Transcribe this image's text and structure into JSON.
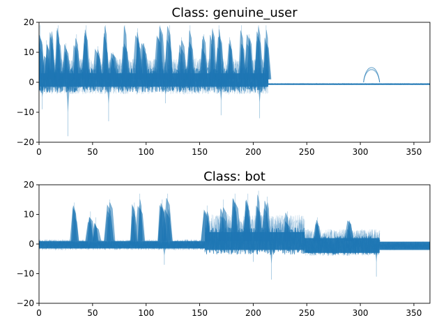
{
  "chart_data": [
    {
      "type": "line",
      "title": "Class: genuine_user",
      "xlabel": "",
      "ylabel": "",
      "xlim": [
        0,
        365
      ],
      "ylim": [
        -20,
        20
      ],
      "xticks": [
        0,
        50,
        100,
        150,
        200,
        250,
        300,
        350
      ],
      "yticks": [
        -20,
        -10,
        0,
        10,
        20
      ],
      "grid": false,
      "series_color": "#1f77b4",
      "series_description_note": "",
      "segments": [
        {
          "x": [
            0,
            214
          ],
          "lo": -4,
          "hi": 8,
          "band_lo": -1.5,
          "band_hi": 3
        },
        {
          "x": [
            214,
            365
          ],
          "lo": -0.8,
          "hi": -0.4,
          "band_lo": -0.8,
          "band_hi": -0.4
        }
      ],
      "peaks": [
        {
          "x": 1,
          "hi": 19
        },
        {
          "x": 7,
          "hi": 14
        },
        {
          "x": 12,
          "hi": 17
        },
        {
          "x": 18,
          "hi": 19
        },
        {
          "x": 25,
          "hi": 13
        },
        {
          "x": 35,
          "hi": 16
        },
        {
          "x": 44,
          "hi": 19
        },
        {
          "x": 55,
          "hi": 12
        },
        {
          "x": 62,
          "hi": 19
        },
        {
          "x": 69,
          "hi": 10
        },
        {
          "x": 80,
          "hi": 19
        },
        {
          "x": 92,
          "hi": 18
        },
        {
          "x": 98,
          "hi": 13
        },
        {
          "x": 113,
          "hi": 19
        },
        {
          "x": 122,
          "hi": 19
        },
        {
          "x": 133,
          "hi": 15
        },
        {
          "x": 141,
          "hi": 19
        },
        {
          "x": 154,
          "hi": 16
        },
        {
          "x": 162,
          "hi": 18
        },
        {
          "x": 168,
          "hi": 19
        },
        {
          "x": 178,
          "hi": 15
        },
        {
          "x": 189,
          "hi": 19
        },
        {
          "x": 196,
          "hi": 16
        },
        {
          "x": 205,
          "hi": 19
        },
        {
          "x": 212,
          "hi": 19
        }
      ],
      "dips": [
        {
          "x": 3,
          "lo": -9
        },
        {
          "x": 27,
          "lo": -18
        },
        {
          "x": 65,
          "lo": -13
        },
        {
          "x": 118,
          "lo": -7
        },
        {
          "x": 170,
          "lo": -11
        },
        {
          "x": 206,
          "lo": -12
        }
      ],
      "bumps": [
        {
          "x": [
            303,
            318
          ],
          "lo": 2,
          "hi": 7
        }
      ]
    },
    {
      "type": "line",
      "title": "Class: bot",
      "xlabel": "",
      "ylabel": "",
      "xlim": [
        0,
        365
      ],
      "ylim": [
        -20,
        20
      ],
      "xticks": [
        0,
        50,
        100,
        150,
        200,
        250,
        300,
        350
      ],
      "yticks": [
        -20,
        -10,
        0,
        10,
        20
      ],
      "grid": false,
      "series_color": "#1f77b4",
      "series_description_note": "",
      "segments": [
        {
          "x": [
            0,
            155
          ],
          "lo": -2,
          "hi": 1.5,
          "band_lo": -1.5,
          "band_hi": 1
        },
        {
          "x": [
            155,
            248
          ],
          "lo": -3,
          "hi": 10,
          "band_lo": -2,
          "band_hi": 4
        },
        {
          "x": [
            248,
            318
          ],
          "lo": -4,
          "hi": 5,
          "band_lo": -3,
          "band_hi": 2
        },
        {
          "x": [
            318,
            365
          ],
          "lo": -2,
          "hi": 0.8,
          "band_lo": -2,
          "band_hi": 0.8
        }
      ],
      "peaks": [
        {
          "x": 33,
          "hi": 14
        },
        {
          "x": 48,
          "hi": 11
        },
        {
          "x": 53,
          "hi": 9
        },
        {
          "x": 66,
          "hi": 15
        },
        {
          "x": 89,
          "hi": 14
        },
        {
          "x": 94,
          "hi": 17
        },
        {
          "x": 115,
          "hi": 15
        },
        {
          "x": 120,
          "hi": 17
        },
        {
          "x": 157,
          "hi": 13
        },
        {
          "x": 172,
          "hi": 15
        },
        {
          "x": 183,
          "hi": 17
        },
        {
          "x": 195,
          "hi": 17
        },
        {
          "x": 205,
          "hi": 18
        },
        {
          "x": 213,
          "hi": 16
        },
        {
          "x": 232,
          "hi": 11
        },
        {
          "x": 260,
          "hi": 9
        },
        {
          "x": 290,
          "hi": 8
        }
      ],
      "dips": [
        {
          "x": 117,
          "lo": -7
        },
        {
          "x": 200,
          "lo": -6
        },
        {
          "x": 217,
          "lo": -12
        },
        {
          "x": 315,
          "lo": -11
        }
      ],
      "bumps": []
    }
  ]
}
